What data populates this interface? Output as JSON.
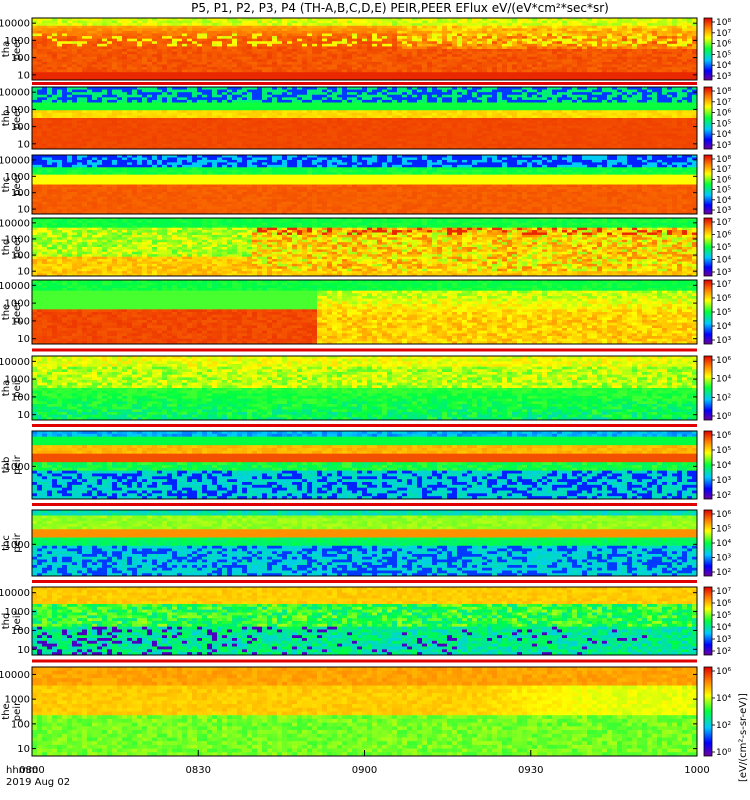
{
  "chart_data": {
    "type": "heatmap",
    "title": "P5, P1, P2, P3, P4 (TH-A,B,C,D,E) PEIR,PEER EFlux eV/(eV*cm²*sec*sr)",
    "colorbar_label": "[eV/(cm²-s-sr-eV)]",
    "x_ticks": [
      "0800",
      "0830",
      "0900",
      "0930",
      "1000"
    ],
    "x_time_label": "hhmm",
    "x_date_label": "2019 Aug 02",
    "panels": [
      {
        "id": "tha-peer",
        "ylabel": [
          "tha",
          "peer"
        ],
        "y_ticks": [
          "10000",
          "1000",
          "100",
          "10"
        ],
        "cbar_ticks": [
          "10⁸",
          "10⁷",
          "10⁶",
          "10⁵",
          "10⁴",
          "10³"
        ],
        "profile": "tha-peer"
      },
      {
        "id": "thb-peer",
        "ylabel": [
          "thb",
          "peer"
        ],
        "y_ticks": [
          "10000",
          "1000",
          "100",
          "10"
        ],
        "cbar_ticks": [
          "10⁸",
          "10⁷",
          "10⁶",
          "10⁵",
          "10⁴",
          "10³"
        ],
        "profile": "thb-peer"
      },
      {
        "id": "thc-peer",
        "ylabel": [
          "thc",
          "peer"
        ],
        "y_ticks": [
          "10000",
          "1000",
          "100",
          "10"
        ],
        "cbar_ticks": [
          "10⁸",
          "10⁷",
          "10⁶",
          "10⁵",
          "10⁴",
          "10³"
        ],
        "profile": "thc-peer"
      },
      {
        "id": "thd-peer",
        "ylabel": [
          "thd",
          "peer"
        ],
        "y_ticks": [
          "10000",
          "1000",
          "100",
          "10"
        ],
        "cbar_ticks": [
          "10⁷",
          "10⁶",
          "10⁵",
          "10⁴",
          "10³"
        ],
        "profile": "thd-peer"
      },
      {
        "id": "the-peer",
        "ylabel": [
          "the",
          "peer"
        ],
        "y_ticks": [
          "10000",
          "1000",
          "100",
          "10"
        ],
        "cbar_ticks": [
          "10⁷",
          "10⁶",
          "10⁵",
          "10⁴",
          "10³"
        ],
        "profile": "the-peer"
      },
      {
        "id": "tha-peir",
        "ylabel": [
          "tha",
          "peir"
        ],
        "y_ticks": [
          "10000",
          "1000",
          "100",
          "10"
        ],
        "cbar_ticks": [
          "10⁶",
          "10⁴",
          "10²",
          "10⁰"
        ],
        "profile": "tha-peir"
      },
      {
        "id": "thb-peir",
        "ylabel": [
          "thb",
          "peir"
        ],
        "y_ticks": [
          "1000"
        ],
        "cbar_ticks": [
          "10⁶",
          "10⁵",
          "10⁴",
          "10³",
          "10²"
        ],
        "profile": "thb-peir"
      },
      {
        "id": "thc-peir",
        "ylabel": [
          "thc",
          "peir"
        ],
        "y_ticks": [
          "1000"
        ],
        "cbar_ticks": [
          "10⁶",
          "10⁵",
          "10⁴",
          "10³",
          "10²"
        ],
        "profile": "thc-peir"
      },
      {
        "id": "thd-peir",
        "ylabel": [
          "thd",
          "peir"
        ],
        "y_ticks": [
          "10000",
          "1000",
          "100",
          "10"
        ],
        "cbar_ticks": [
          "10⁷",
          "10⁶",
          "10⁵",
          "10⁴",
          "10³",
          "10²"
        ],
        "profile": "thd-peir"
      },
      {
        "id": "the-peir",
        "ylabel": [
          "the",
          "peir"
        ],
        "y_ticks": [
          "10000",
          "1000",
          "100",
          "10"
        ],
        "cbar_ticks": [
          "10⁶",
          "10⁴",
          "10²",
          "10⁰"
        ],
        "profile": "the-peir"
      }
    ]
  }
}
